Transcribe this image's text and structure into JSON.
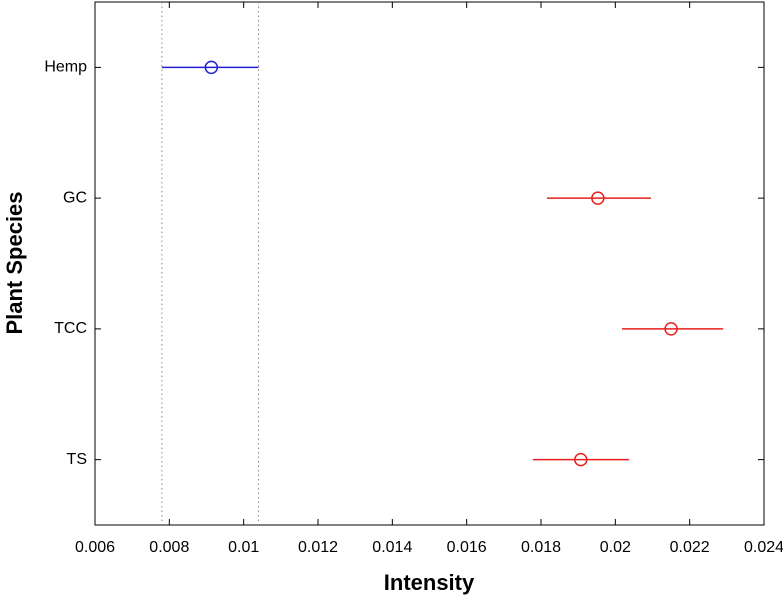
{
  "chart_data": {
    "type": "interval",
    "xlabel": "Intensity",
    "ylabel": "Plant Species",
    "categories": [
      "Hemp",
      "GC",
      "TCC",
      "TS"
    ],
    "values": [
      0.00913,
      0.01953,
      0.0215,
      0.01907
    ],
    "lower": [
      0.0078,
      0.01816,
      0.02018,
      0.01778
    ],
    "upper": [
      0.0104,
      0.02096,
      0.0229,
      0.02037
    ],
    "colors": [
      "#2020d0",
      "#e82020",
      "#e82020",
      "#e82020"
    ],
    "reference_lines": [
      0.0078,
      0.0104
    ],
    "xlim": [
      0.006,
      0.024
    ],
    "xticks": [
      0.006,
      0.008,
      0.01,
      0.012,
      0.014,
      0.016,
      0.018,
      0.02,
      0.022,
      0.024
    ]
  }
}
